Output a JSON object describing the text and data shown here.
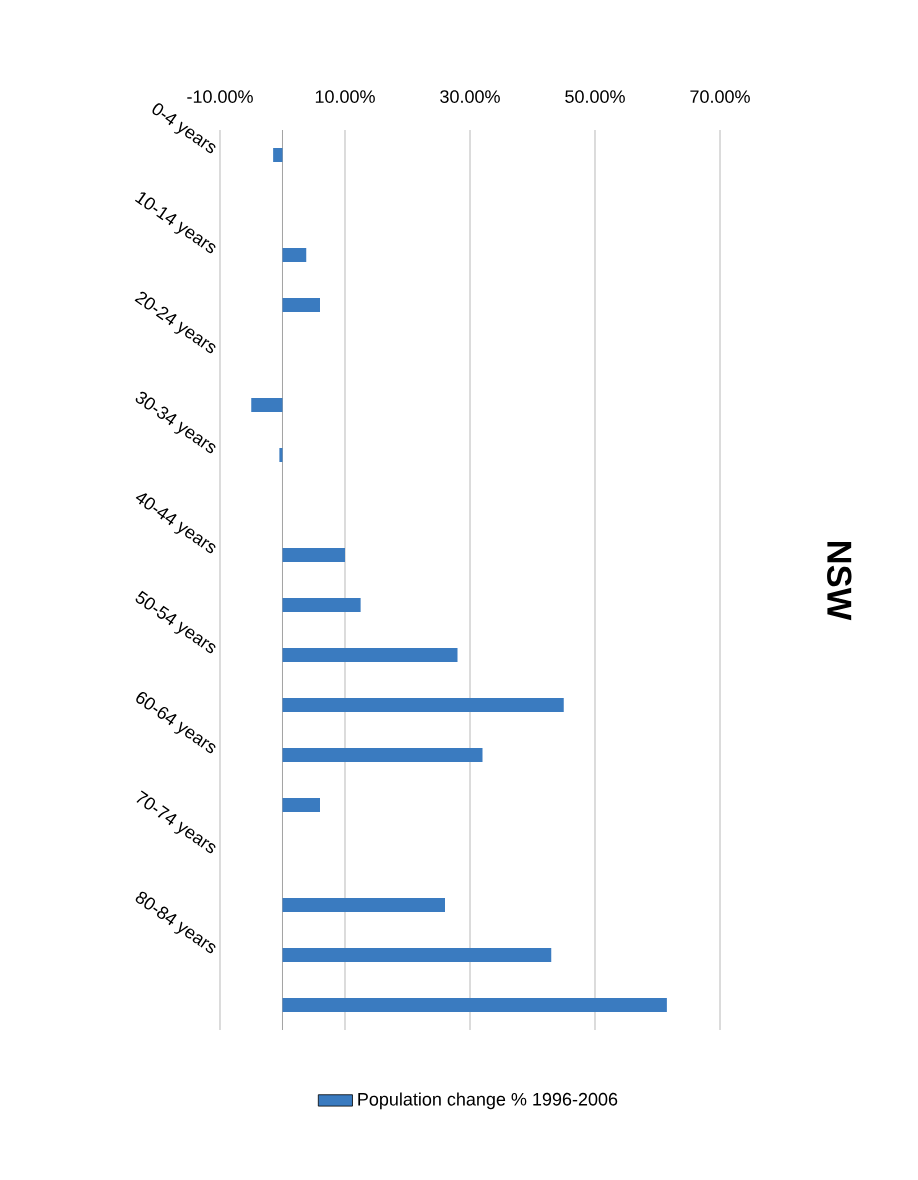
{
  "chart_data": {
    "type": "bar",
    "orientation": "horizontal",
    "title": "NSW",
    "categories": [
      "0-4 years",
      null,
      "10-14 years",
      null,
      "20-24 years",
      null,
      "30-34 years",
      null,
      "40-44 years",
      null,
      "50-54 years",
      null,
      "60-64 years",
      null,
      "70-74 years",
      null,
      "80-84 years",
      null
    ],
    "series": [
      {
        "name": "Population change % 1996-2006",
        "color": "#3a7bc0",
        "values": [
          -1.5,
          0,
          3.8,
          6,
          0,
          -5,
          -0.5,
          0,
          10,
          12.5,
          28,
          45,
          32,
          6,
          0,
          26,
          43,
          61.5
        ]
      }
    ],
    "xlim": [
      -10,
      70
    ],
    "xticks": [
      {
        "value": -10,
        "label": "-10.00%"
      },
      {
        "value": 10,
        "label": "10.00%"
      },
      {
        "value": 30,
        "label": "30.00%"
      },
      {
        "value": 50,
        "label": "50.00%"
      },
      {
        "value": 70,
        "label": "70.00%"
      }
    ],
    "grid": "x",
    "legend": "bottom"
  }
}
